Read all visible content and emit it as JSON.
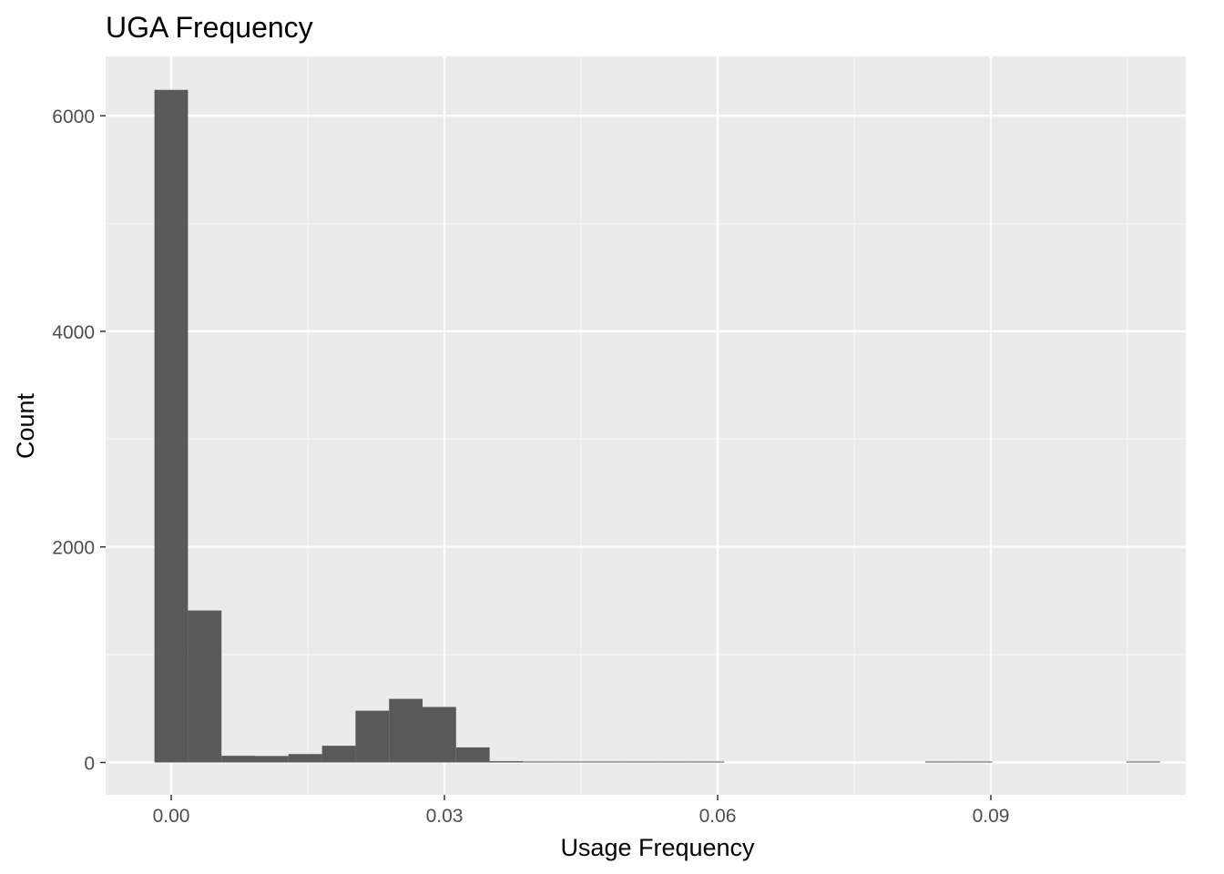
{
  "chart_data": {
    "type": "bar",
    "title": "UGA Frequency",
    "xlabel": "Usage Frequency",
    "ylabel": "Count",
    "xlim": [
      -0.0072,
      0.1114
    ],
    "ylim": [
      -300,
      6550
    ],
    "x_ticks": [
      0.0,
      0.03,
      0.06,
      0.09
    ],
    "x_tick_labels": [
      "0.00",
      "0.03",
      "0.06",
      "0.09"
    ],
    "y_ticks": [
      0,
      2000,
      4000,
      6000
    ],
    "y_tick_labels": [
      "0",
      "2000",
      "4000",
      "6000"
    ],
    "bin_width": 0.00368,
    "bin_starts": [
      -0.00184,
      0.00184,
      0.00552,
      0.0092,
      0.01288,
      0.01656,
      0.02024,
      0.02392,
      0.0276,
      0.03128,
      0.03496,
      0.03864,
      0.04232,
      0.046,
      0.04968,
      0.05336,
      0.05704,
      0.06072,
      0.0644,
      0.06808,
      0.07176,
      0.07544,
      0.07912,
      0.0828,
      0.08648,
      0.09016,
      0.09384,
      0.09752,
      0.1012,
      0.10488
    ],
    "values": [
      6240,
      1410,
      62,
      60,
      78,
      155,
      480,
      590,
      515,
      140,
      12,
      5,
      4,
      3,
      3,
      2,
      2,
      0,
      0,
      0,
      0,
      0,
      0,
      2,
      1,
      0,
      0,
      0,
      0,
      2
    ],
    "grid": true,
    "legend": "none",
    "colors": {
      "panel_background": "#ebebeb",
      "grid_major": "#ffffff",
      "grid_minor": "#f5f5f5",
      "bar_fill": "#595959",
      "tick_text": "#4d4d4d",
      "tick_mark": "#333333"
    }
  }
}
